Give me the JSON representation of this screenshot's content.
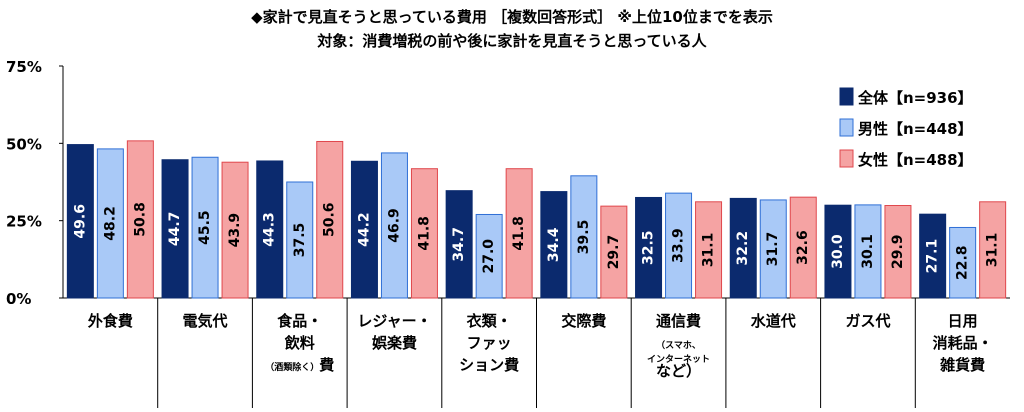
{
  "chart_data": {
    "type": "bar",
    "title": "◆家計で見直そうと思っている費用 ［複数回答形式］ ※上位10位までを表示",
    "subtitle": "対象：消費増税の前や後に家計を見直そうと思っている人",
    "xlabel": "",
    "ylabel": "",
    "ylim": [
      0,
      75
    ],
    "yticks": [
      "0%",
      "25%",
      "50%",
      "75%"
    ],
    "ytick_values": [
      0,
      25,
      50,
      75
    ],
    "legend_position": "top-right",
    "categories": [
      [
        "外食費"
      ],
      [
        "電気代"
      ],
      [
        "食品・",
        "飲料",
        "（酒類除く）費"
      ],
      [
        "レジャー・",
        "娯楽費"
      ],
      [
        "衣類・",
        "ファッ",
        "ション費"
      ],
      [
        "交際費"
      ],
      [
        "通信費",
        "（スマホ、",
        "インターネット",
        "など）"
      ],
      [
        "水道代"
      ],
      [
        "ガス代"
      ],
      [
        "日用",
        "消耗品・",
        "雑貨費"
      ]
    ],
    "series": [
      {
        "name": "全体【n=936】",
        "color": "#0b2a6e",
        "stroke": "#0b2a6e",
        "label_color": "#ffffff",
        "values": [
          49.6,
          44.7,
          44.3,
          44.2,
          34.7,
          34.4,
          32.5,
          32.2,
          30.0,
          27.1
        ]
      },
      {
        "name": "男性【n=448】",
        "color": "#a9c9f7",
        "stroke": "#2f6fd6",
        "label_color": "#000000",
        "values": [
          48.2,
          45.5,
          37.5,
          46.9,
          27.0,
          39.5,
          33.9,
          31.7,
          30.1,
          22.8
        ]
      },
      {
        "name": "女性【n=488】",
        "color": "#f5a3a3",
        "stroke": "#e0474c",
        "label_color": "#000000",
        "values": [
          50.8,
          43.9,
          50.6,
          41.8,
          41.8,
          29.7,
          31.1,
          32.6,
          29.9,
          31.1
        ]
      }
    ]
  }
}
